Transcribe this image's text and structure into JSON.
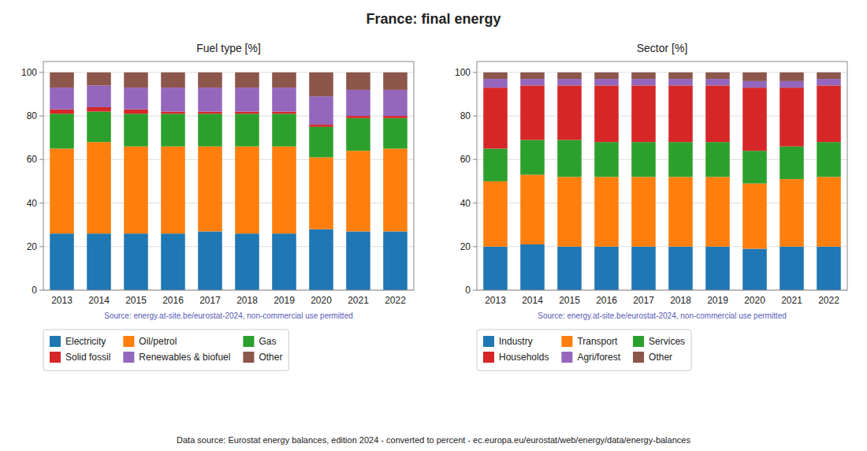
{
  "title": "France: final energy",
  "annotations": [
    "Data source: Eurostat energy balances, edition 2024 - converted to percent - ec.europa.eu/eurostat/web/energy/data/energy-balances"
  ],
  "chart_data": [
    {
      "type": "bar",
      "stacked": true,
      "grid": true,
      "legend": "bottom",
      "title": "Fuel type [%]",
      "annotations": [
        "Source: energy.at-site.be/eurostat-2024, non-commercial use permitted"
      ],
      "categories": [
        "2013",
        "2014",
        "2015",
        "2016",
        "2017",
        "2018",
        "2019",
        "2020",
        "2021",
        "2022"
      ],
      "ylim": [
        0,
        105
      ],
      "yticks": [
        0,
        20,
        40,
        60,
        80,
        100
      ],
      "series": [
        {
          "name": "Electricity",
          "color": "#1f77b4",
          "values": [
            26,
            26,
            26,
            26,
            27,
            26,
            26,
            28,
            27,
            27
          ]
        },
        {
          "name": "Oil/petrol",
          "color": "#ff7f0e",
          "values": [
            39,
            42,
            40,
            40,
            39,
            40,
            40,
            33,
            37,
            38
          ]
        },
        {
          "name": "Gas",
          "color": "#2ca02c",
          "values": [
            16,
            14,
            15,
            15,
            15,
            15,
            15,
            14,
            15,
            14
          ]
        },
        {
          "name": "Solid fossil",
          "color": "#d62728",
          "values": [
            2,
            2,
            2,
            1,
            1,
            1,
            1,
            1,
            1,
            1
          ]
        },
        {
          "name": "Renewables & biofuel",
          "color": "#9467bd",
          "values": [
            10,
            10,
            10,
            11,
            11,
            11,
            11,
            13,
            12,
            12
          ]
        },
        {
          "name": "Other",
          "color": "#8c564b",
          "values": [
            7,
            6,
            7,
            7,
            7,
            7,
            7,
            11,
            8,
            8
          ]
        }
      ]
    },
    {
      "type": "bar",
      "stacked": true,
      "grid": true,
      "legend": "bottom",
      "title": "Sector [%]",
      "annotations": [
        "Source: energy.at-site.be/eurostat-2024, non-commercial use permitted"
      ],
      "categories": [
        "2013",
        "2014",
        "2015",
        "2016",
        "2017",
        "2018",
        "2019",
        "2020",
        "2021",
        "2022"
      ],
      "ylim": [
        0,
        105
      ],
      "yticks": [
        0,
        20,
        40,
        60,
        80,
        100
      ],
      "series": [
        {
          "name": "Industry",
          "color": "#1f77b4",
          "values": [
            20,
            21,
            20,
            20,
            20,
            20,
            20,
            19,
            20,
            20
          ]
        },
        {
          "name": "Transport",
          "color": "#ff7f0e",
          "values": [
            30,
            32,
            32,
            32,
            32,
            32,
            32,
            30,
            31,
            32
          ]
        },
        {
          "name": "Services",
          "color": "#2ca02c",
          "values": [
            15,
            16,
            17,
            16,
            16,
            16,
            16,
            15,
            15,
            16
          ]
        },
        {
          "name": "Households",
          "color": "#d62728",
          "values": [
            28,
            25,
            25,
            26,
            26,
            26,
            26,
            29,
            27,
            26
          ]
        },
        {
          "name": "Agri/forest",
          "color": "#9467bd",
          "values": [
            4,
            3,
            3,
            3,
            3,
            3,
            3,
            3,
            3,
            3
          ]
        },
        {
          "name": "Other",
          "color": "#8c564b",
          "values": [
            3,
            3,
            3,
            3,
            3,
            3,
            3,
            4,
            4,
            3
          ]
        }
      ]
    }
  ]
}
